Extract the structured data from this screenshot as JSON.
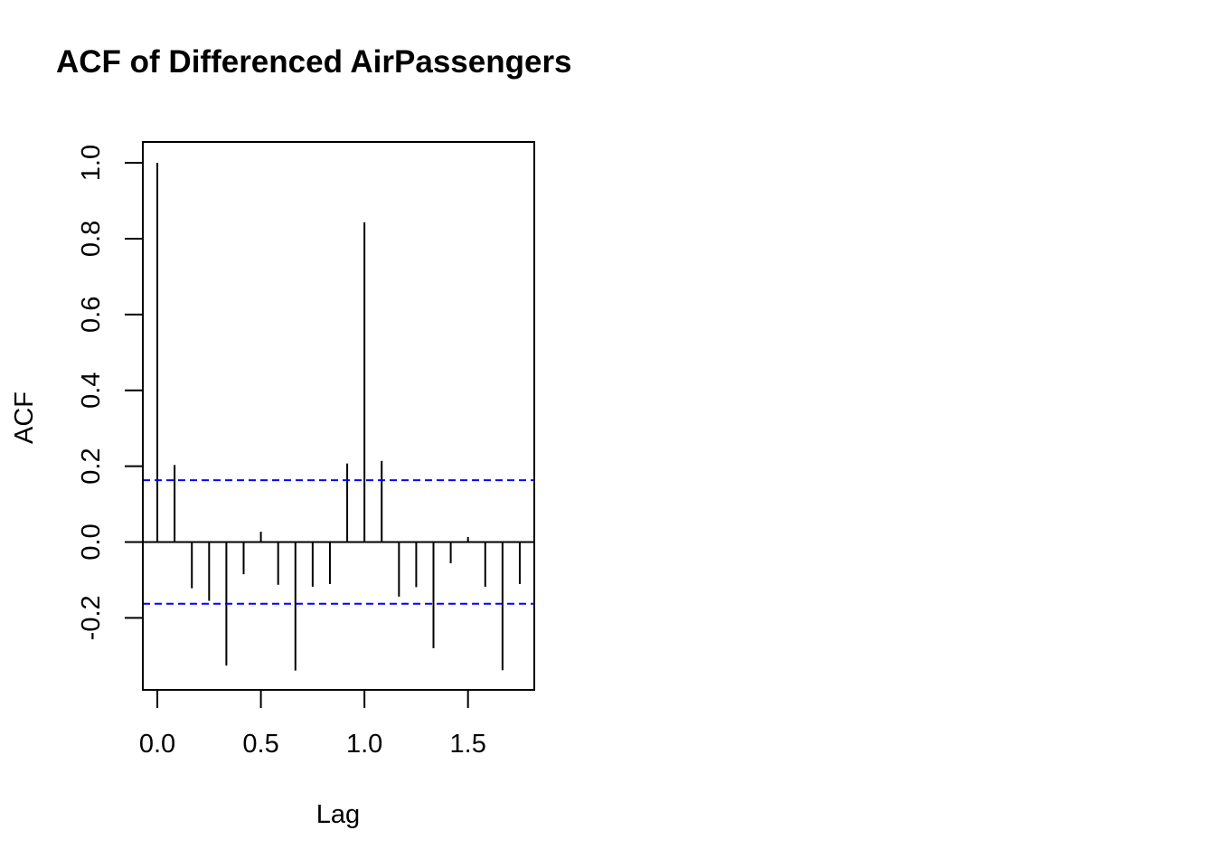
{
  "chart_data": {
    "type": "bar",
    "title": "ACF of Differenced AirPassengers",
    "xlabel": "Lag",
    "ylabel": "ACF",
    "x_ticks": [
      "0.0",
      "0.5",
      "1.0",
      "1.5"
    ],
    "y_ticks": [
      "-0.2",
      "0.0",
      "0.2",
      "0.4",
      "0.6",
      "0.8",
      "1.0"
    ],
    "xlim": [
      -0.07,
      1.82
    ],
    "ylim": [
      -0.39,
      1.055
    ],
    "grid": false,
    "legend": "none",
    "series": [
      {
        "x": [
          0.0,
          0.0833,
          0.1667,
          0.25,
          0.3333,
          0.4167,
          0.5,
          0.5833,
          0.6667,
          0.75,
          0.8333,
          0.9167,
          1.0,
          1.0833,
          1.1667,
          1.25,
          1.3333,
          1.4167,
          1.5,
          1.5833,
          1.6667,
          1.75
        ],
        "values": [
          1.0,
          0.203,
          -0.122,
          -0.155,
          -0.326,
          -0.085,
          0.027,
          -0.113,
          -0.339,
          -0.118,
          -0.111,
          0.207,
          0.843,
          0.214,
          -0.144,
          -0.119,
          -0.28,
          -0.056,
          0.013,
          -0.118,
          -0.338,
          -0.111
        ]
      }
    ],
    "confidence_band": {
      "upper": 0.163,
      "lower": -0.163
    },
    "colors": {
      "bars": "#000000",
      "confidence_band": "#0000ff",
      "frame": "#000000"
    }
  }
}
